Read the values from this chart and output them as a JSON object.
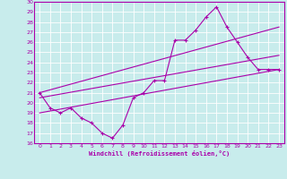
{
  "xlabel": "Windchill (Refroidissement éolien,°C)",
  "xlim": [
    -0.5,
    23.5
  ],
  "ylim": [
    16,
    30
  ],
  "yticks": [
    16,
    17,
    18,
    19,
    20,
    21,
    22,
    23,
    24,
    25,
    26,
    27,
    28,
    29,
    30
  ],
  "xticks": [
    0,
    1,
    2,
    3,
    4,
    5,
    6,
    7,
    8,
    9,
    10,
    11,
    12,
    13,
    14,
    15,
    16,
    17,
    18,
    19,
    20,
    21,
    22,
    23
  ],
  "bg_color": "#c8ecec",
  "grid_color": "#ffffff",
  "line_color": "#aa00aa",
  "line1_x": [
    0,
    1,
    2,
    3,
    4,
    5,
    6,
    7,
    8,
    9,
    10,
    11,
    12,
    13,
    14,
    15,
    16,
    17,
    18,
    19,
    20,
    21,
    22,
    23
  ],
  "line1_y": [
    21,
    19.5,
    19,
    19.5,
    18.5,
    18,
    17,
    16.5,
    17.8,
    20.5,
    21.0,
    22.2,
    22.2,
    26.2,
    26.2,
    27.2,
    28.5,
    29.5,
    27.5,
    26,
    24.5,
    23.3,
    23.3,
    23.3
  ],
  "line2_x": [
    0,
    23
  ],
  "line2_y": [
    19,
    23.3
  ],
  "line3_x": [
    0,
    23
  ],
  "line3_y": [
    21,
    27.5
  ],
  "line4_x": [
    0,
    23
  ],
  "line4_y": [
    20.5,
    24.7
  ],
  "tick_fontsize": 4.5,
  "xlabel_fontsize": 5.0
}
